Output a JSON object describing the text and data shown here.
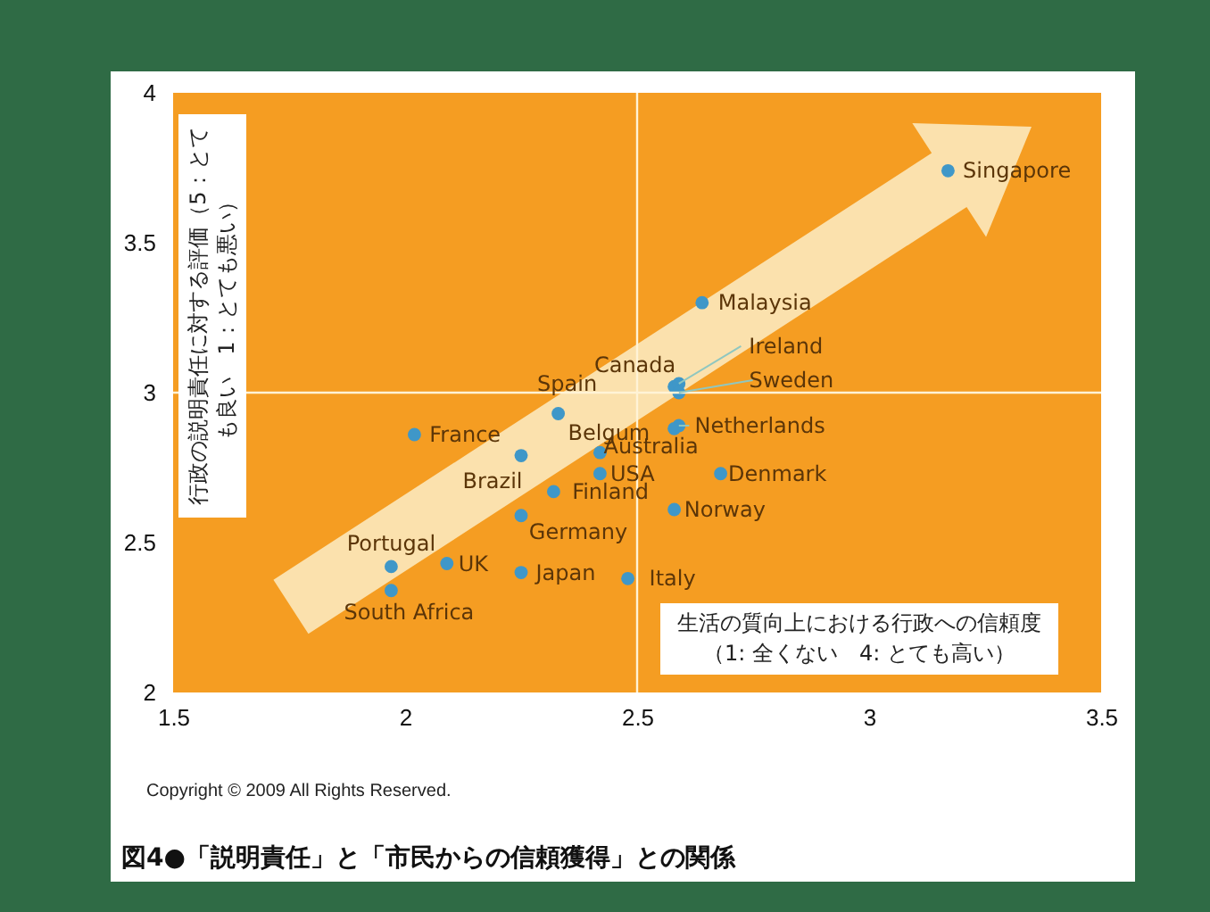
{
  "chart_data": {
    "type": "scatter",
    "title": "図4●「説明責任」と「市民からの信頼獲得」との関係",
    "xlabel": "生活の質向上における行政への信頼度（1: 全くない　4: とても高い）",
    "ylabel": "行政の説明責任に対する評価（5：とても良い　1：とても悪い）",
    "xlim": [
      1.5,
      3.5
    ],
    "xticks": [
      1.5,
      2,
      2.5,
      3,
      3.5
    ],
    "ylim": [
      2,
      4
    ],
    "yticks": [
      2,
      2.5,
      3,
      3.5,
      4
    ],
    "grid": false,
    "marker": "circle",
    "ref_lines": [
      {
        "axis": "x",
        "value": 2.5,
        "color": "#fff3d6"
      },
      {
        "axis": "y",
        "value": 3,
        "color": "#fff3d6"
      }
    ],
    "series": [
      {
        "color": "#3f97c8",
        "x": [
          3.17,
          2.64,
          2.58,
          2.59,
          2.59,
          2.59,
          2.58,
          2.68,
          2.58,
          2.48,
          2.42,
          2.42,
          2.32,
          2.33,
          2.25,
          2.25,
          2.25,
          2.02,
          2.09,
          1.97,
          1.97
        ],
        "values": [
          3.74,
          3.3,
          3.02,
          3.03,
          3.0,
          2.89,
          2.88,
          2.73,
          2.61,
          2.38,
          2.73,
          2.8,
          2.67,
          2.93,
          2.79,
          2.59,
          2.4,
          2.86,
          2.43,
          2.42,
          2.34
        ]
      }
    ],
    "annotations": [
      {
        "text": "Singapore",
        "x": 3.17,
        "y": 3.74
      },
      {
        "text": "Malaysia",
        "x": 2.64,
        "y": 3.3
      },
      {
        "text": "Canada",
        "x": 2.58,
        "y": 3.02
      },
      {
        "text": "Ireland",
        "x": 2.59,
        "y": 3.03
      },
      {
        "text": "Sweden",
        "x": 2.59,
        "y": 3.0
      },
      {
        "text": "Netherlands",
        "x": 2.59,
        "y": 2.89
      },
      {
        "text": "Australia",
        "x": 2.58,
        "y": 2.88
      },
      {
        "text": "Denmark",
        "x": 2.68,
        "y": 2.73
      },
      {
        "text": "Norway",
        "x": 2.58,
        "y": 2.61
      },
      {
        "text": "Italy",
        "x": 2.48,
        "y": 2.38
      },
      {
        "text": "USA",
        "x": 2.42,
        "y": 2.73
      },
      {
        "text": "Belgum",
        "x": 2.42,
        "y": 2.8
      },
      {
        "text": "Finland",
        "x": 2.32,
        "y": 2.67
      },
      {
        "text": "Spain",
        "x": 2.33,
        "y": 2.93
      },
      {
        "text": "Brazil",
        "x": 2.25,
        "y": 2.79
      },
      {
        "text": "Germany",
        "x": 2.25,
        "y": 2.59
      },
      {
        "text": "Japan",
        "x": 2.25,
        "y": 2.4
      },
      {
        "text": "France",
        "x": 2.02,
        "y": 2.86
      },
      {
        "text": "UK",
        "x": 2.09,
        "y": 2.43
      },
      {
        "text": "Portugal",
        "x": 1.97,
        "y": 2.42
      },
      {
        "text": "South Africa",
        "x": 1.97,
        "y": 2.34
      },
      "Copyright © 2009 All Rights Reserved."
    ]
  }
}
